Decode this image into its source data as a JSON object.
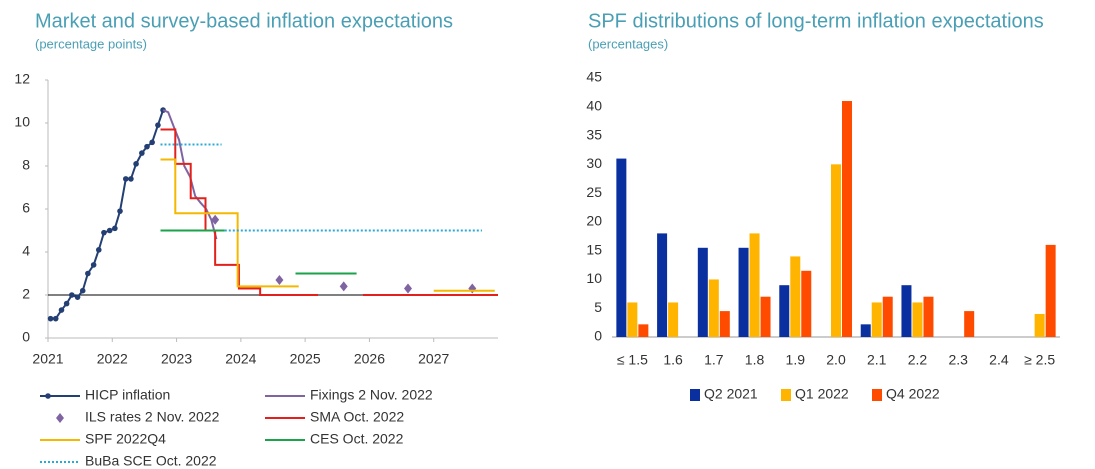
{
  "chart_data": [
    {
      "type": "line",
      "title": "Market and survey-based inflation expectations",
      "subtitle": "(percentage points)",
      "xlim": [
        2021,
        2028
      ],
      "xticks": [
        2021,
        2022,
        2023,
        2024,
        2025,
        2026,
        2027
      ],
      "ylim": [
        0,
        12
      ],
      "yticks": [
        0,
        2,
        4,
        6,
        8,
        10,
        12
      ],
      "hline": 2,
      "legend": "bottom",
      "series": [
        {
          "name": "HICP inflation",
          "color": "#243f73",
          "marker": "circle",
          "x": [
            2021.04,
            2021.12,
            2021.21,
            2021.29,
            2021.37,
            2021.46,
            2021.54,
            2021.62,
            2021.71,
            2021.79,
            2021.87,
            2021.96,
            2022.04,
            2022.12,
            2022.21,
            2022.29,
            2022.37,
            2022.46,
            2022.54,
            2022.62,
            2022.71,
            2022.79
          ],
          "values": [
            0.9,
            0.9,
            1.3,
            1.6,
            2.0,
            1.9,
            2.2,
            3.0,
            3.4,
            4.1,
            4.9,
            5.0,
            5.1,
            5.9,
            7.4,
            7.4,
            8.1,
            8.6,
            8.9,
            9.1,
            9.9,
            10.6
          ]
        },
        {
          "name": "Fixings 2 Nov. 2022",
          "color": "#8064a2",
          "x": [
            2022.79,
            2022.87,
            2022.96,
            2023.04,
            2023.12,
            2023.21,
            2023.29,
            2023.37,
            2023.46,
            2023.54,
            2023.62
          ],
          "values": [
            10.6,
            10.5,
            9.8,
            9.2,
            8.0,
            7.5,
            6.6,
            6.3,
            6.0,
            5.5,
            4.6
          ]
        },
        {
          "name": "ILS rates 2 Nov. 2022",
          "color": "#8064a2",
          "marker": "diamond",
          "line": false,
          "x": [
            2023.6,
            2024.6,
            2025.6,
            2026.6,
            2027.6
          ],
          "values": [
            5.5,
            2.7,
            2.4,
            2.3,
            2.3
          ]
        },
        {
          "name": "SMA Oct. 2022",
          "color": "#e3201b",
          "x": [
            2022.75,
            2022.98,
            2022.98,
            2023.22,
            2023.22,
            2023.45,
            2023.45,
            2023.6,
            2023.6,
            2023.97,
            2023.97,
            2024.3,
            2024.3,
            2025.2,
            2025.5,
            2025.9,
            2028
          ],
          "values": [
            9.7,
            9.7,
            8.1,
            8.1,
            6.5,
            6.5,
            5.0,
            5.0,
            3.4,
            3.4,
            2.3,
            2.3,
            2.0,
            2.0,
            null,
            2.0,
            2.0
          ]
        },
        {
          "name": "SPF 2022Q4",
          "color": "#f5b800",
          "x": [
            2022.75,
            2022.98,
            2022.98,
            2023.95,
            2023.95,
            2024.9,
            2025.5,
            2027.0,
            2027.95
          ],
          "values": [
            8.3,
            8.3,
            5.8,
            5.8,
            2.4,
            2.4,
            null,
            2.2,
            2.2
          ]
        },
        {
          "name": "CES Oct. 2022",
          "color": "#1aa34a",
          "x": [
            2022.75,
            2023.75,
            2024.3,
            2024.85,
            2025.8
          ],
          "values": [
            5.0,
            5.0,
            null,
            3.0,
            3.0
          ]
        },
        {
          "name": "BuBa SCE Oct. 2022",
          "color": "#29a9d8",
          "dash": "dotted",
          "x": [
            2022.75,
            2023.7,
            2023.72,
            2023.75,
            2027.75
          ],
          "values": [
            9.0,
            9.0,
            null,
            5.0,
            5.0
          ]
        }
      ]
    },
    {
      "type": "bar",
      "title": "SPF distributions of long-term inflation expectations",
      "subtitle": "(percentages)",
      "categories": [
        "≤ 1.5",
        "1.6",
        "1.7",
        "1.8",
        "1.9",
        "2.0",
        "2.1",
        "2.2",
        "2.3",
        "2.4",
        "≥ 2.5"
      ],
      "ylim": [
        0,
        45
      ],
      "yticks": [
        0,
        5,
        10,
        15,
        20,
        25,
        30,
        35,
        40,
        45
      ],
      "legend": "bottom",
      "series": [
        {
          "name": "Q2 2021",
          "color": "#0a2f9e",
          "values": [
            31,
            18,
            15.5,
            15.5,
            9,
            0,
            2.2,
            9,
            0,
            0,
            0
          ]
        },
        {
          "name": "Q1 2022",
          "color": "#ffb400",
          "values": [
            6,
            6,
            10,
            18,
            14,
            30,
            6,
            6,
            0,
            0,
            4
          ]
        },
        {
          "name": "Q4 2022",
          "color": "#ff4b00",
          "values": [
            2.2,
            0,
            4.5,
            7,
            11.5,
            41,
            7,
            7,
            4.5,
            0,
            16
          ]
        }
      ]
    }
  ]
}
